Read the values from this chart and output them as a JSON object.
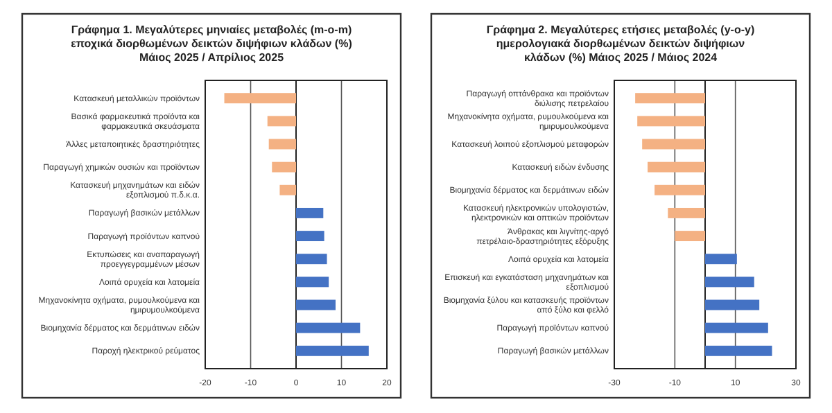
{
  "chart_data": [
    {
      "type": "bar",
      "orientation": "horizontal",
      "title": "Γράφημα 1. Μεγαλύτερες μηνιαίες μεταβολές (m-o-m) εποχικά διορθωμένων δεικτών διψήφιων κλάδων (%) Μάιος 2025 / Απρίλιος 2025",
      "categories": [
        "Κατασκευή μεταλλικών προϊόντων",
        "Βασικά φαρμακευτικά προϊόντα και φαρμακευτικά σκευάσματα",
        "Άλλες μεταποιητικές δραστηριότητες",
        "Παραγωγή χημικών ουσιών και προϊόντων",
        "Κατασκευή μηχανημάτων και ειδών εξοπλισμού π.δ.κ.α.",
        "Παραγωγή βασικών μετάλλων",
        "Παραγωγή προϊόντων καπνού",
        "Εκτυπώσεις και αναπαραγωγή προεγγεγραμμένων μέσων",
        "Λοιπά ορυχεία και λατομεία",
        "Μηχανοκίνητα οχήματα, ρυμουλκούμενα και ημιρυμουλκούμενα",
        "Βιομηχανία δέρματος και δερμάτινων ειδών",
        "Παροχή ηλεκτρικού ρεύματος"
      ],
      "values": [
        -15.8,
        -6.3,
        -6.0,
        -5.3,
        -3.6,
        6.0,
        6.2,
        6.8,
        7.2,
        8.7,
        14.1,
        16.0
      ],
      "colors": [
        "#f4b183",
        "#f4b183",
        "#f4b183",
        "#f4b183",
        "#f4b183",
        "#4472c4",
        "#4472c4",
        "#4472c4",
        "#4472c4",
        "#4472c4",
        "#4472c4",
        "#4472c4"
      ],
      "xlim": [
        -20,
        20
      ],
      "xticks": [
        -20,
        -10,
        0,
        10,
        20
      ],
      "grid": "x"
    },
    {
      "type": "bar",
      "orientation": "horizontal",
      "title": "Γράφημα 2. Μεγαλύτερες ετήσιες μεταβολές (y-o-y) ημερολογιακά διορθωμένων δεικτών διψήφιων κλάδων (%) Μάιος 2025 / Μάιος  2024",
      "categories": [
        "Παραγωγή οπτάνθρακα και προϊόντων διύλισης πετρελαίου",
        "Μηχανοκίνητα οχήματα, ρυμουλκούμενα και ημιρυμουλκούμενα",
        "Κατασκευή λοιπού εξοπλισμού μεταφορών",
        "Κατασκευή ειδών ένδυσης",
        "Βιομηχανία δέρματος και δερμάτινων ειδών",
        "Κατασκευή ηλεκτρονικών υπολογιστών, ηλεκτρονικών και οπτικών προϊόντων",
        "Άνθρακας και λιγνίτης-αργό πετρέλαιο-δραστηριότητες εξόρυξης",
        "Λοιπά ορυχεία και λατομεία",
        "Επισκευή και εγκατάσταση μηχανημάτων και εξοπλισμού",
        "Βιομηχανία ξύλου και κατασκευής προϊόντων από ξύλο και φελλό",
        "Παραγωγή προϊόντων καπνού",
        "Παραγωγή βασικών μετάλλων"
      ],
      "values": [
        -23.1,
        -22.4,
        -20.8,
        -19.0,
        -16.7,
        -12.3,
        -10.0,
        10.5,
        16.2,
        17.9,
        20.8,
        22.1
      ],
      "colors": [
        "#f4b183",
        "#f4b183",
        "#f4b183",
        "#f4b183",
        "#f4b183",
        "#f4b183",
        "#f4b183",
        "#4472c4",
        "#4472c4",
        "#4472c4",
        "#4472c4",
        "#4472c4"
      ],
      "xlim": [
        -30,
        30
      ],
      "xticks": [
        -30,
        -10,
        10,
        30
      ],
      "grid": "x"
    }
  ]
}
